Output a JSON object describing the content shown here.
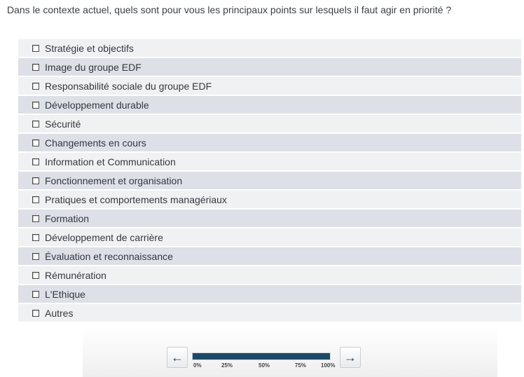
{
  "question": "Dans le contexte actuel, quels sont pour vous les principaux points sur lesquels il faut agir en priorité ?",
  "options": [
    {
      "label": "Stratégie et objectifs",
      "checked": false
    },
    {
      "label": "Image du groupe EDF",
      "checked": false
    },
    {
      "label": "Responsabilité sociale du groupe EDF",
      "checked": false
    },
    {
      "label": "Développement durable",
      "checked": false
    },
    {
      "label": "Sécurité",
      "checked": false
    },
    {
      "label": "Changements en cours",
      "checked": false
    },
    {
      "label": "Information et Communication",
      "checked": false
    },
    {
      "label": "Fonctionnement et organisation",
      "checked": false
    },
    {
      "label": "Pratiques et comportements managériaux",
      "checked": false
    },
    {
      "label": "Formation",
      "checked": false
    },
    {
      "label": "Développement de carrière",
      "checked": false
    },
    {
      "label": "Évaluation et reconnaissance",
      "checked": false
    },
    {
      "label": "Rémunération",
      "checked": false
    },
    {
      "label": "L'Ethique",
      "checked": false
    },
    {
      "label": "Autres",
      "checked": false
    }
  ],
  "navigation": {
    "prev_icon": "arrow-left-icon",
    "prev_glyph": "←",
    "next_icon": "arrow-right-icon",
    "next_glyph": "→"
  },
  "progress": {
    "value_percent": 100,
    "ticks": [
      "0%",
      "25%",
      "50%",
      "75%",
      "100%"
    ],
    "fill_color": "#1c4a66"
  }
}
